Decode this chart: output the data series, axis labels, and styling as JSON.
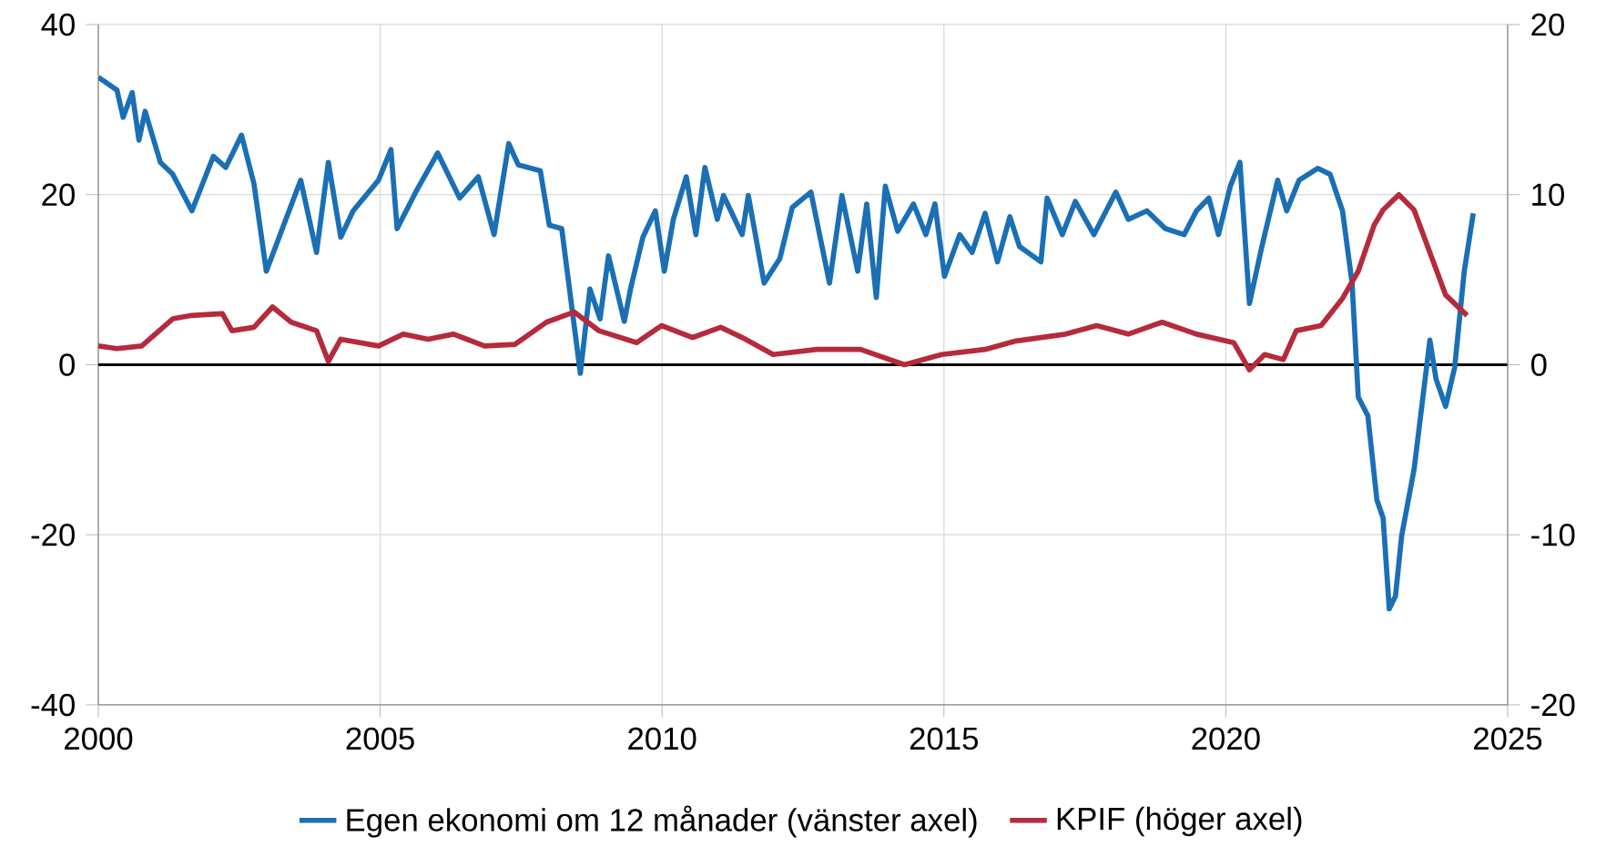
{
  "chart_data": {
    "type": "line",
    "xlim": [
      2000,
      2025
    ],
    "xticks": [
      2000,
      2005,
      2010,
      2015,
      2020,
      2025
    ],
    "ylim": [
      -40,
      40
    ],
    "yticks": [
      -40,
      -20,
      0,
      20,
      40
    ],
    "y2lim": [
      -20,
      20
    ],
    "y2ticks": [
      -20,
      -10,
      0,
      10,
      20
    ],
    "grid": true,
    "legend": "bottom",
    "marker": "none",
    "line_style": "solid",
    "ref_lines": [
      {
        "axis": "y",
        "value": 0,
        "color": "#000000"
      }
    ],
    "series": [
      {
        "name": "Egen ekonomi om 12 månader (vänster axel)",
        "color": "#1a6fb5",
        "x": [
          2000.0,
          2000.33,
          2000.44,
          2000.6,
          2000.72,
          2000.83,
          2001.1,
          2001.32,
          2001.66,
          2002.04,
          2002.26,
          2002.54,
          2002.76,
          2002.98,
          2003.31,
          2003.59,
          2003.87,
          2004.08,
          2004.3,
          2004.52,
          2004.97,
          2005.19,
          2005.3,
          2005.63,
          2006.02,
          2006.41,
          2006.74,
          2007.02,
          2007.28,
          2007.45,
          2007.84,
          2008.0,
          2008.22,
          2008.55,
          2008.72,
          2008.9,
          2009.05,
          2009.33,
          2009.44,
          2009.66,
          2009.88,
          2010.04,
          2010.2,
          2010.43,
          2010.6,
          2010.76,
          2010.98,
          2011.09,
          2011.42,
          2011.53,
          2011.81,
          2012.09,
          2012.31,
          2012.64,
          2012.97,
          2013.19,
          2013.47,
          2013.63,
          2013.8,
          2013.96,
          2014.18,
          2014.46,
          2014.68,
          2014.84,
          2015.01,
          2015.28,
          2015.5,
          2015.73,
          2015.95,
          2016.17,
          2016.34,
          2016.72,
          2016.83,
          2017.1,
          2017.33,
          2017.66,
          2018.05,
          2018.27,
          2018.6,
          2018.93,
          2019.26,
          2019.48,
          2019.7,
          2019.87,
          2020.08,
          2020.25,
          2020.42,
          2020.64,
          2020.92,
          2021.08,
          2021.3,
          2021.63,
          2021.85,
          2022.07,
          2022.24,
          2022.35,
          2022.52,
          2022.68,
          2022.79,
          2022.9,
          2023.01,
          2023.12,
          2023.34,
          2023.62,
          2023.73,
          2023.9,
          2024.06,
          2024.23,
          2024.39
        ],
        "values": [
          33.8,
          32.3,
          29.1,
          32,
          26.4,
          29.8,
          23.8,
          22.4,
          18.1,
          24.5,
          23.2,
          27,
          21.3,
          11,
          16.8,
          21.7,
          13.2,
          23.8,
          15,
          18.1,
          21.7,
          25.3,
          16,
          20.3,
          24.9,
          19.6,
          22.1,
          15.3,
          26,
          23.5,
          22.8,
          16.4,
          16,
          -1,
          8.9,
          5.4,
          12.8,
          5.1,
          8.9,
          15,
          18.1,
          11,
          17.1,
          22.1,
          15.3,
          23.2,
          17.1,
          19.9,
          15.3,
          19.9,
          9.6,
          12.5,
          18.5,
          20.3,
          9.6,
          19.9,
          11,
          18.9,
          7.9,
          21,
          15.7,
          18.9,
          15.3,
          18.9,
          10.4,
          15.3,
          13.2,
          17.8,
          12.1,
          17.4,
          13.9,
          12.1,
          19.6,
          15.3,
          19.2,
          15.3,
          20.3,
          17.1,
          18.1,
          16,
          15.3,
          18.1,
          19.6,
          15.3,
          21,
          23.8,
          7.2,
          13.9,
          21.7,
          18.1,
          21.7,
          23.1,
          22.4,
          18.1,
          9.6,
          -3.8,
          -6,
          -15.9,
          -18,
          -28.7,
          -27.2,
          -20.1,
          -12.3,
          2.9,
          -1.7,
          -4.9,
          -0.3,
          11,
          17.8
        ]
      },
      {
        "name": "KPIF (höger axel)",
        "color": "#b52a3c",
        "axis": "y2",
        "x": [
          2000.0,
          2000.33,
          2000.77,
          2001.32,
          2001.66,
          2002.2,
          2002.37,
          2002.76,
          2003.09,
          2003.42,
          2003.87,
          2004.08,
          2004.3,
          2004.97,
          2005.41,
          2005.85,
          2006.3,
          2006.85,
          2007.39,
          2007.95,
          2008.44,
          2008.88,
          2009.55,
          2009.99,
          2010.54,
          2011.04,
          2011.42,
          2011.97,
          2012.75,
          2013.52,
          2014.3,
          2014.96,
          2015.73,
          2016.28,
          2017.16,
          2017.71,
          2018.27,
          2018.87,
          2019.48,
          2020.14,
          2020.42,
          2020.69,
          2021.02,
          2021.25,
          2021.69,
          2022.07,
          2022.35,
          2022.63,
          2022.79,
          2023.07,
          2023.34,
          2023.62,
          2023.9,
          2024.28
        ],
        "values": [
          1.1,
          0.95,
          1.1,
          2.7,
          2.9,
          3.0,
          2.0,
          2.2,
          3.4,
          2.5,
          2.0,
          0.2,
          1.5,
          1.1,
          1.8,
          1.5,
          1.8,
          1.1,
          1.2,
          2.5,
          3.1,
          2.0,
          1.3,
          2.3,
          1.6,
          2.2,
          1.6,
          0.6,
          0.9,
          0.9,
          0.0,
          0.6,
          0.9,
          1.4,
          1.8,
          2.3,
          1.8,
          2.5,
          1.8,
          1.3,
          -0.3,
          0.6,
          0.3,
          2.0,
          2.3,
          3.9,
          5.5,
          8.2,
          9.1,
          10.0,
          9.1,
          6.6,
          4.1,
          2.9
        ]
      }
    ]
  }
}
